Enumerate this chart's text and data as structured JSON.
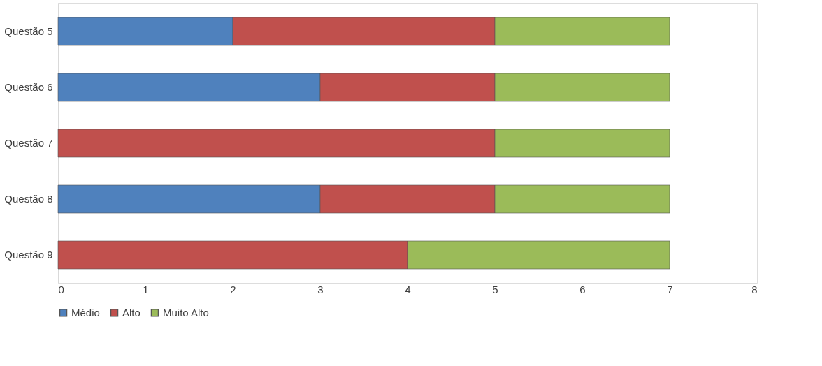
{
  "chart_data": {
    "type": "bar",
    "orientation": "horizontal",
    "stacked": true,
    "categories": [
      "Questão 5",
      "Questão 6",
      "Questão 7",
      "Questão 8",
      "Questão 9"
    ],
    "series": [
      {
        "name": "Médio",
        "color": "#4f81bd",
        "values": [
          2,
          3,
          null,
          3,
          null
        ]
      },
      {
        "name": "Alto",
        "color": "#c0504d",
        "values": [
          3,
          2,
          5,
          2,
          4
        ]
      },
      {
        "name": "Muito Alto",
        "color": "#9bbb59",
        "values": [
          2,
          2,
          2,
          2,
          3
        ]
      }
    ],
    "xlim": [
      0,
      8
    ],
    "xticks": [
      0,
      1,
      2,
      3,
      4,
      5,
      6,
      7,
      8
    ],
    "grid": false,
    "legend": "bottom"
  }
}
